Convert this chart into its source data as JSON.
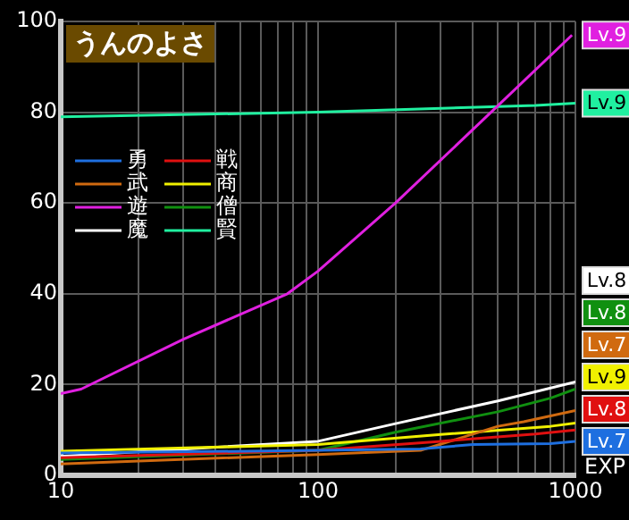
{
  "chart_data": {
    "type": "line",
    "title": "うんのよさ",
    "xlabel": "EXP",
    "log": "x",
    "grid": true,
    "legend": "left",
    "xlim": [
      10,
      1000
    ],
    "xticks": [
      10,
      {
        "value": 20,
        "label": null
      },
      {
        "value": 30,
        "label": null
      },
      {
        "value": 40,
        "label": null
      },
      {
        "value": 50,
        "label": null
      },
      {
        "value": 60,
        "label": null
      },
      {
        "value": 70,
        "label": null
      },
      {
        "value": 80,
        "label": null
      },
      {
        "value": 90,
        "label": null
      },
      100,
      {
        "value": 200,
        "label": null
      },
      {
        "value": 300,
        "label": null
      },
      {
        "value": 400,
        "label": null
      },
      {
        "value": 500,
        "label": null
      },
      {
        "value": 600,
        "label": null
      },
      {
        "value": 700,
        "label": null
      },
      {
        "value": 800,
        "label": null
      },
      {
        "value": 900,
        "label": null
      },
      1000
    ],
    "ylim": [
      0,
      100
    ],
    "yticks": [
      0,
      20,
      40,
      60,
      80,
      100
    ],
    "series": [
      {
        "name": "勇",
        "color": "#1e6fe0",
        "x": [
          10,
          100,
          250,
          400,
          800,
          1000
        ],
        "values": [
          4.9,
          5.5,
          5.8,
          6.8,
          7,
          7.5
        ]
      },
      {
        "name": "戦",
        "color": "#e01010",
        "x": [
          10,
          100,
          300,
          700,
          1000
        ],
        "values": [
          3.9,
          5.5,
          7.5,
          9.1,
          10
        ]
      },
      {
        "name": "武",
        "color": "#d06a10",
        "x": [
          10,
          100,
          250,
          500,
          630,
          1000
        ],
        "values": [
          2.5,
          4.6,
          5.5,
          10.8,
          11.8,
          14.3
        ]
      },
      {
        "name": "商",
        "color": "#f0f000",
        "x": [
          10,
          100,
          300,
          800,
          1000
        ],
        "values": [
          5.3,
          6.8,
          9,
          10.8,
          11.5
        ]
      },
      {
        "name": "遊",
        "color": "#e020e0",
        "x": [
          10,
          12,
          30,
          76,
          100,
          200,
          470,
          970
        ],
        "values": [
          18,
          19,
          30,
          40,
          45,
          60,
          80,
          97
        ]
      },
      {
        "name": "僧",
        "color": "#109010",
        "x": [
          10,
          100,
          200,
          500,
          800,
          1000
        ],
        "values": [
          3.5,
          5.5,
          9.5,
          14,
          17,
          19
        ]
      },
      {
        "name": "魔",
        "color": "#ffffff",
        "x": [
          10,
          100,
          200,
          500,
          1000
        ],
        "values": [
          4.2,
          7.5,
          11.4,
          16.4,
          20.6
        ]
      },
      {
        "name": "賢",
        "color": "#20f0a0",
        "x": [
          10,
          100,
          700,
          1000
        ],
        "values": [
          79,
          80,
          81.5,
          82
        ]
      }
    ],
    "annotations": [
      "Lv.7",
      "Lv.8",
      "Lv.7",
      "Lv.9",
      "Lv.9",
      "Lv.8",
      "Lv.8",
      "Lv.9"
    ]
  }
}
